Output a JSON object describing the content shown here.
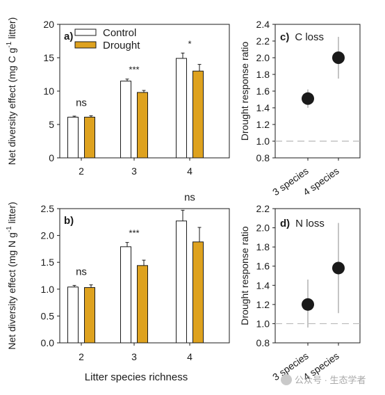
{
  "colors": {
    "control": "#ffffff",
    "drought": "#dea21f",
    "axis": "#1a1a1a",
    "dot": "#1a1a1a",
    "errbar": "#b0b0b0",
    "refline": "#b8b8b8"
  },
  "legend": {
    "control": "Control",
    "drought": "Drought"
  },
  "shared": {
    "xlabel": "Litter species richness"
  },
  "watermark": "公众号 · 生态学者",
  "chart_data": [
    {
      "id": "a",
      "panel_label": "a)",
      "type": "bar",
      "categories": [
        "2",
        "3",
        "4"
      ],
      "ylabel_main": "Net diversity effect (mg C g",
      "ylabel_sup": "-1",
      "ylabel_tail": " litter)",
      "ylim": [
        0,
        20
      ],
      "yticks": [
        0,
        5,
        10,
        15,
        20
      ],
      "series": [
        {
          "name": "Control",
          "values": [
            6.1,
            11.5,
            14.9
          ],
          "err": [
            0.15,
            0.3,
            0.8
          ]
        },
        {
          "name": "Drought",
          "values": [
            6.1,
            9.8,
            13.0
          ],
          "err": [
            0.2,
            0.3,
            1.0
          ]
        }
      ],
      "significance": [
        "ns",
        "***",
        "*"
      ]
    },
    {
      "id": "b",
      "panel_label": "b)",
      "type": "bar",
      "categories": [
        "2",
        "3",
        "4"
      ],
      "ylabel_main": "Net diversity effect (mg N g",
      "ylabel_sup": "-1",
      "ylabel_tail": " litter)",
      "ylim": [
        0,
        2.5
      ],
      "yticks": [
        0.0,
        0.5,
        1.0,
        1.5,
        2.0,
        2.5
      ],
      "series": [
        {
          "name": "Control",
          "values": [
            1.04,
            1.79,
            2.27
          ],
          "err": [
            0.03,
            0.08,
            0.2
          ]
        },
        {
          "name": "Drought",
          "values": [
            1.03,
            1.44,
            1.88
          ],
          "err": [
            0.05,
            0.1,
            0.27
          ]
        }
      ],
      "significance": [
        "ns",
        "***",
        "ns"
      ]
    },
    {
      "id": "c",
      "panel_label": "c)",
      "panel_title": "C loss",
      "type": "scatter",
      "categories": [
        "3 species",
        "4 species"
      ],
      "ylabel": "Drought response ratio",
      "ylim": [
        0.8,
        2.4
      ],
      "yticks": [
        0.8,
        1.0,
        1.2,
        1.4,
        1.6,
        1.8,
        2.0,
        2.2,
        2.4
      ],
      "reference_line": 1.0,
      "points": [
        {
          "x": "3 species",
          "y": 1.51,
          "low": 1.4,
          "high": 1.62
        },
        {
          "x": "4 species",
          "y": 2.0,
          "low": 1.75,
          "high": 2.25
        }
      ]
    },
    {
      "id": "d",
      "panel_label": "d)",
      "panel_title": "N loss",
      "type": "scatter",
      "categories": [
        "3 species",
        "4 species"
      ],
      "ylabel": "Drought response ratio",
      "ylim": [
        0.8,
        2.2
      ],
      "yticks": [
        0.8,
        1.0,
        1.2,
        1.4,
        1.6,
        1.8,
        2.0,
        2.2
      ],
      "reference_line": 1.0,
      "points": [
        {
          "x": "3 species",
          "y": 1.2,
          "low": 0.96,
          "high": 1.46
        },
        {
          "x": "4 species",
          "y": 1.58,
          "low": 1.11,
          "high": 2.05
        }
      ]
    }
  ]
}
